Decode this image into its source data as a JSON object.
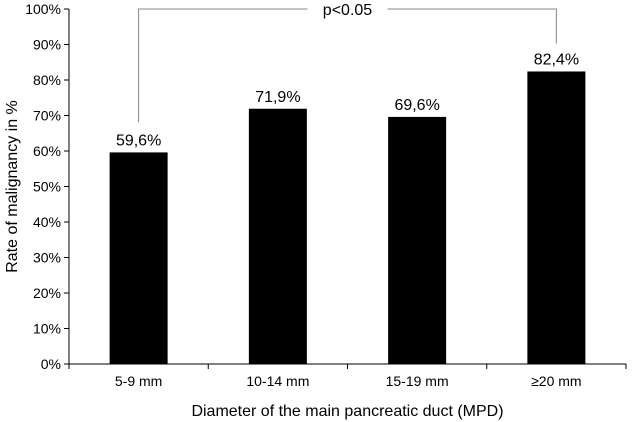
{
  "chart_data": {
    "type": "bar",
    "categories": [
      "5-9 mm",
      "10-14 mm",
      "15-19 mm",
      "≥20 mm"
    ],
    "values": [
      59.6,
      71.9,
      69.6,
      82.4
    ],
    "value_labels": [
      "59,6%",
      "71,9%",
      "69,6%",
      "82,4%"
    ],
    "title": "",
    "xlabel": "Diameter of the main pancreatic duct (MPD)",
    "ylabel": "Rate of malignancy in %",
    "ylim": [
      0,
      100
    ],
    "yticks": [
      "0%",
      "10%",
      "20%",
      "30%",
      "40%",
      "50%",
      "60%",
      "70%",
      "80%",
      "90%",
      "100%"
    ],
    "grid": false,
    "annotation": {
      "text": "p<0.05",
      "from_category": 0,
      "to_category": 3,
      "y_value": 100
    },
    "colors": {
      "bar": "#000000",
      "bracket": "#888888"
    }
  }
}
